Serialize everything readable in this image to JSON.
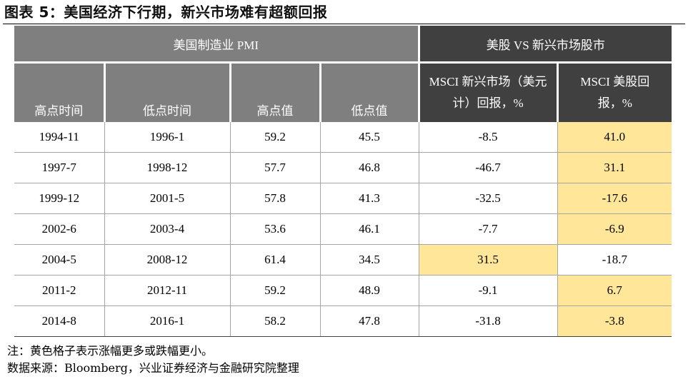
{
  "title": "图表 5：美国经济下行期，新兴市场难有超额回报",
  "table": {
    "group_headers": [
      "美国制造业 PMI",
      "美股 VS 新兴市场股市"
    ],
    "columns": [
      "高点时间",
      "低点时间",
      "高点值",
      "低点值",
      "MSCI 新兴市场（美元计）回报，%",
      "MSCI 美股回报，%"
    ],
    "rows": [
      {
        "high_time": "1994-11",
        "low_time": "1996-1",
        "high_val": "59.2",
        "low_val": "45.5",
        "em_return": "-8.5",
        "us_return": "41.0",
        "highlight": "us"
      },
      {
        "high_time": "1997-7",
        "low_time": "1998-12",
        "high_val": "57.7",
        "low_val": "46.8",
        "em_return": "-46.7",
        "us_return": "31.1",
        "highlight": "us"
      },
      {
        "high_time": "1999-12",
        "low_time": "2001-5",
        "high_val": "57.8",
        "low_val": "41.3",
        "em_return": "-32.5",
        "us_return": "-17.6",
        "highlight": "us"
      },
      {
        "high_time": "2002-6",
        "low_time": "2003-4",
        "high_val": "53.6",
        "low_val": "46.1",
        "em_return": "-7.7",
        "us_return": "-6.9",
        "highlight": "us"
      },
      {
        "high_time": "2004-5",
        "low_time": "2008-12",
        "high_val": "61.4",
        "low_val": "34.5",
        "em_return": "31.5",
        "us_return": "-18.7",
        "highlight": "em"
      },
      {
        "high_time": "2011-2",
        "low_time": "2012-11",
        "high_val": "59.2",
        "low_val": "48.9",
        "em_return": "-9.1",
        "us_return": "6.7",
        "highlight": "us"
      },
      {
        "high_time": "2014-8",
        "low_time": "2016-1",
        "high_val": "58.2",
        "low_val": "47.8",
        "em_return": "-31.8",
        "us_return": "-3.8",
        "highlight": "us"
      }
    ]
  },
  "notes": {
    "highlight_note": "注：黄色格子表示涨幅更多或跌幅更小。",
    "source": "数据来源：Bloomberg，兴业证券经济与金融研究院整理"
  },
  "colors": {
    "header_gray": "#7f7f7f",
    "header_dark": "#404040",
    "highlight_yellow": "#ffe699"
  }
}
